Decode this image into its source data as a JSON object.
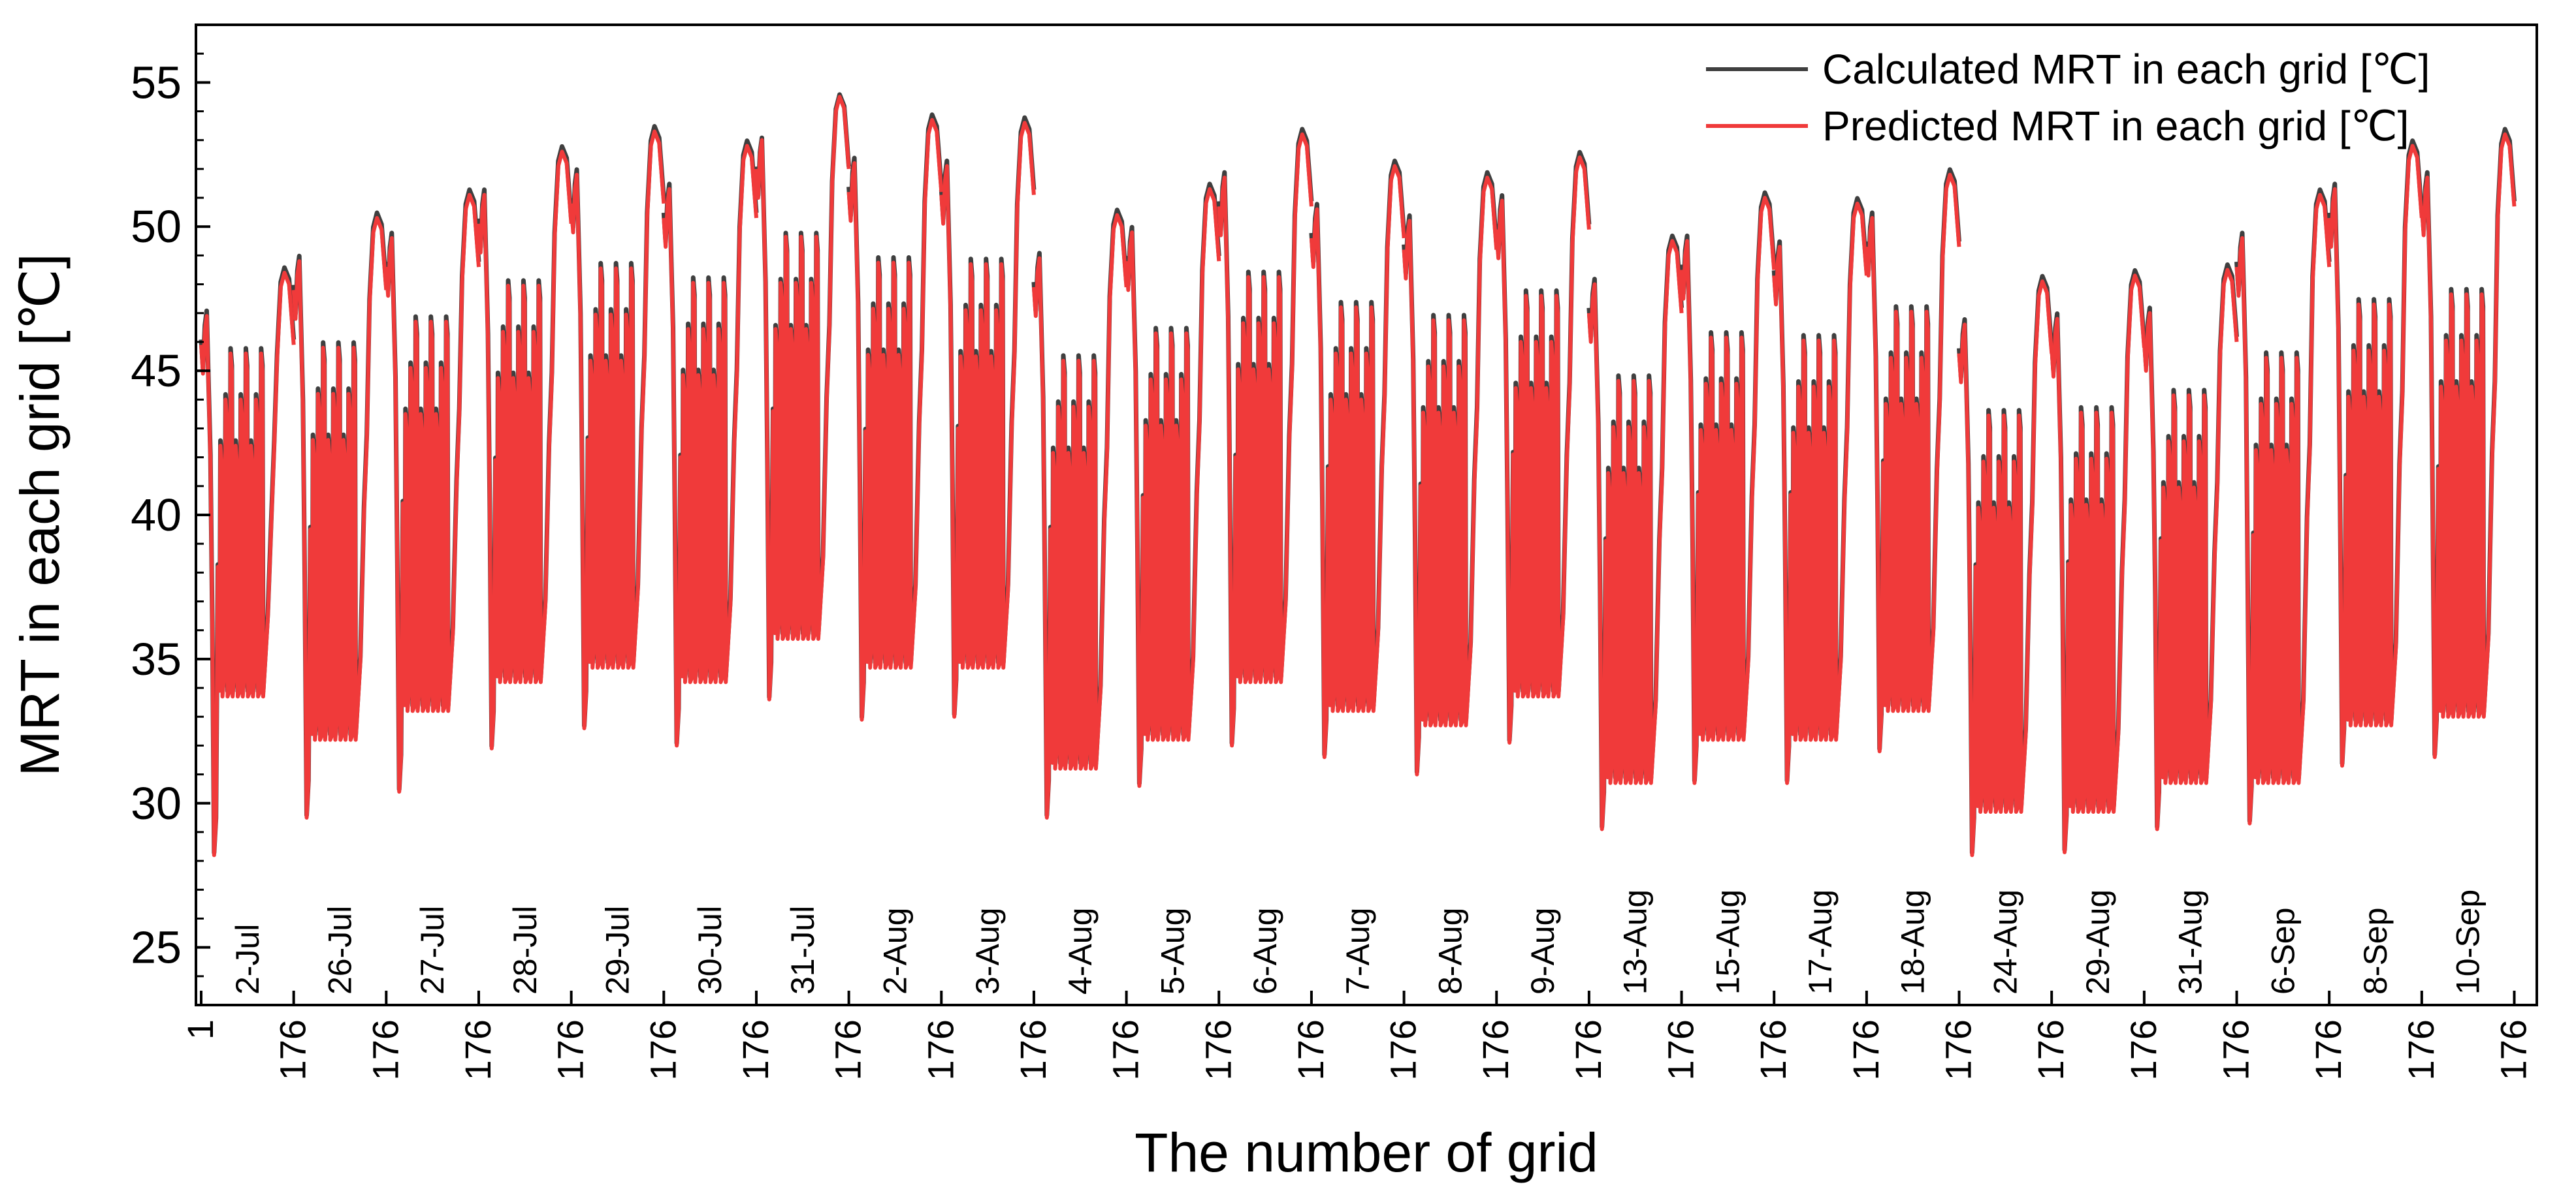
{
  "chart_data": {
    "type": "line",
    "title": "",
    "xlabel": "The number of grid",
    "ylabel": "MRT in each grid [℃]",
    "ylim": [
      23,
      57
    ],
    "y_ticks": [
      25,
      30,
      35,
      40,
      45,
      50,
      55
    ],
    "x_tick_labels": [
      "1",
      "176",
      "176",
      "176",
      "176",
      "176",
      "176",
      "176",
      "176",
      "176",
      "176",
      "176",
      "176",
      "176",
      "176",
      "176",
      "176",
      "176",
      "176",
      "176",
      "176",
      "176",
      "176",
      "176",
      "176",
      "176"
    ],
    "day_labels": [
      "2-Jul",
      "26-Jul",
      "27-Jul",
      "28-Jul",
      "29-Jul",
      "30-Jul",
      "31-Jul",
      "2-Aug",
      "3-Aug",
      "4-Aug",
      "5-Aug",
      "6-Aug",
      "7-Aug",
      "8-Aug",
      "9-Aug",
      "13-Aug",
      "15-Aug",
      "17-Aug",
      "18-Aug",
      "24-Aug",
      "29-Aug",
      "31-Aug",
      "6-Sep",
      "8-Sep",
      "10-Sep"
    ],
    "legend_position": "top-right",
    "grid_points_per_day": 176,
    "series": [
      {
        "name": "Calculated MRT in each grid [℃]",
        "color": "#3f3f3f",
        "day_profiles": [
          {
            "high": 48.5,
            "min": 28.2,
            "low": 33.5
          },
          {
            "high": 50.4,
            "min": 29.5,
            "low": 32.0
          },
          {
            "high": 51.2,
            "min": 30.4,
            "low": 33.0
          },
          {
            "high": 52.7,
            "min": 31.9,
            "low": 34.0
          },
          {
            "high": 53.4,
            "min": 32.6,
            "low": 34.5
          },
          {
            "high": 52.9,
            "min": 32.0,
            "low": 34.0
          },
          {
            "high": 54.5,
            "min": 33.6,
            "low": 35.5
          },
          {
            "high": 53.8,
            "min": 32.9,
            "low": 34.5
          },
          {
            "high": 53.7,
            "min": 33.0,
            "low": 34.5
          },
          {
            "high": 50.5,
            "min": 29.5,
            "low": 31.0
          },
          {
            "high": 51.4,
            "min": 30.6,
            "low": 32.0
          },
          {
            "high": 53.3,
            "min": 32.0,
            "low": 34.0
          },
          {
            "high": 52.2,
            "min": 31.6,
            "low": 33.0
          },
          {
            "high": 51.8,
            "min": 31.0,
            "low": 32.5
          },
          {
            "high": 52.5,
            "min": 32.1,
            "low": 33.5
          },
          {
            "high": 49.6,
            "min": 29.1,
            "low": 30.5
          },
          {
            "high": 51.1,
            "min": 30.7,
            "low": 32.0
          },
          {
            "high": 50.9,
            "min": 30.7,
            "low": 32.0
          },
          {
            "high": 51.9,
            "min": 31.8,
            "low": 33.0
          },
          {
            "high": 48.2,
            "min": 28.2,
            "low": 29.5
          },
          {
            "high": 48.4,
            "min": 28.3,
            "low": 29.5
          },
          {
            "high": 48.6,
            "min": 29.1,
            "low": 30.5
          },
          {
            "high": 51.2,
            "min": 29.3,
            "low": 30.5
          },
          {
            "high": 52.9,
            "min": 31.3,
            "low": 32.5
          },
          {
            "high": 53.3,
            "min": 31.6,
            "low": 32.8
          }
        ]
      },
      {
        "name": "Predicted MRT in each grid [℃]",
        "color": "#f03a3a",
        "day_profiles": [
          {
            "high": 48.4,
            "min": 28.2,
            "low": 33.4
          },
          {
            "high": 50.3,
            "min": 29.5,
            "low": 31.9
          },
          {
            "high": 51.1,
            "min": 30.4,
            "low": 32.9
          },
          {
            "high": 52.6,
            "min": 31.9,
            "low": 33.9
          },
          {
            "high": 53.3,
            "min": 32.6,
            "low": 34.4
          },
          {
            "high": 52.8,
            "min": 32.0,
            "low": 33.9
          },
          {
            "high": 54.5,
            "min": 33.6,
            "low": 35.4
          },
          {
            "high": 53.7,
            "min": 32.9,
            "low": 34.4
          },
          {
            "high": 53.6,
            "min": 33.0,
            "low": 34.4
          },
          {
            "high": 50.4,
            "min": 29.5,
            "low": 30.9
          },
          {
            "high": 51.3,
            "min": 30.6,
            "low": 31.9
          },
          {
            "high": 53.2,
            "min": 32.0,
            "low": 33.9
          },
          {
            "high": 52.1,
            "min": 31.6,
            "low": 32.9
          },
          {
            "high": 51.7,
            "min": 31.0,
            "low": 32.4
          },
          {
            "high": 52.4,
            "min": 32.1,
            "low": 33.4
          },
          {
            "high": 49.5,
            "min": 29.1,
            "low": 30.4
          },
          {
            "high": 51.0,
            "min": 30.7,
            "low": 31.9
          },
          {
            "high": 50.8,
            "min": 30.7,
            "low": 31.9
          },
          {
            "high": 51.8,
            "min": 31.8,
            "low": 32.9
          },
          {
            "high": 48.1,
            "min": 28.2,
            "low": 29.4
          },
          {
            "high": 48.3,
            "min": 28.3,
            "low": 29.4
          },
          {
            "high": 48.5,
            "min": 29.1,
            "low": 30.4
          },
          {
            "high": 51.1,
            "min": 29.3,
            "low": 30.4
          },
          {
            "high": 52.8,
            "min": 31.3,
            "low": 32.4
          },
          {
            "high": 53.2,
            "min": 31.6,
            "low": 32.7
          }
        ]
      }
    ]
  }
}
